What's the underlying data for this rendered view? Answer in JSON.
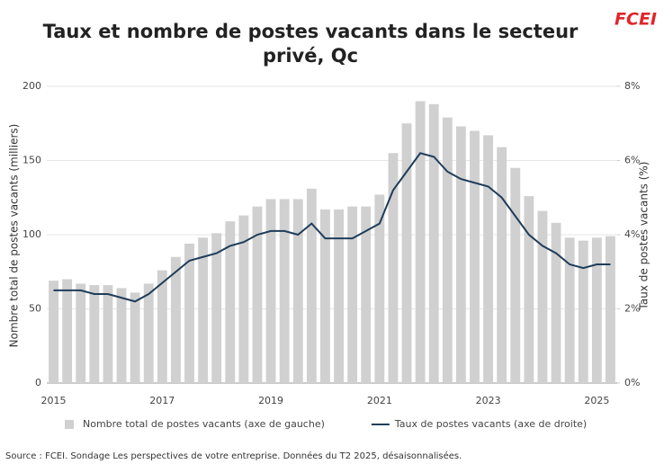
{
  "chart_data": {
    "type": "bar-line",
    "title": "Taux et nombre de postes vacants dans le secteur privé, Qc",
    "brand": "FCEI",
    "ylabel": "Nombre total de postes vacants (milliers)",
    "y2label": "Taux de postes vacants (%)",
    "source": "Source : FCEI. Sondage Les perspectives de votre entreprise. Données du T2 2025, désaisonnalisées.",
    "categories": [
      "2015",
      null,
      null,
      null,
      null,
      null,
      null,
      null,
      "2017",
      null,
      null,
      null,
      null,
      null,
      null,
      null,
      "2019",
      null,
      null,
      null,
      null,
      null,
      null,
      null,
      "2021",
      null,
      null,
      null,
      null,
      null,
      null,
      null,
      "2023",
      null,
      null,
      null,
      null,
      null,
      null,
      null,
      "2025",
      null
    ],
    "series": [
      {
        "name": "Nombre total de postes vacants (axe de gauche)",
        "color": "#d0d0d0",
        "type": "bar",
        "values": [
          69,
          70,
          67,
          66,
          66,
          64,
          61,
          67,
          76,
          85,
          94,
          98,
          101,
          109,
          113,
          119,
          124,
          124,
          124,
          131,
          117,
          117,
          119,
          119,
          127,
          155,
          175,
          190,
          188,
          179,
          173,
          170,
          167,
          159,
          145,
          126,
          116,
          108,
          98,
          96,
          98,
          99
        ]
      },
      {
        "name": "Taux de postes vacants (axe de droite)",
        "color": "#1f3d5a",
        "type": "line",
        "axis": "y2",
        "values": [
          2.5,
          2.5,
          2.5,
          2.4,
          2.4,
          2.3,
          2.2,
          2.4,
          2.7,
          3.0,
          3.3,
          3.4,
          3.5,
          3.7,
          3.8,
          4.0,
          4.1,
          4.1,
          4.0,
          4.3,
          3.9,
          3.9,
          3.9,
          4.1,
          4.3,
          5.2,
          5.7,
          6.2,
          6.1,
          5.7,
          5.5,
          5.4,
          5.3,
          5.0,
          4.5,
          4.0,
          3.7,
          3.5,
          3.2,
          3.1,
          3.2,
          3.2
        ]
      }
    ],
    "ylim": [
      0,
      200
    ],
    "yticks": [
      0,
      50,
      100,
      150,
      200
    ],
    "y2lim": [
      0,
      8
    ],
    "y2ticks": [
      {
        "value": 0,
        "label": "0%"
      },
      {
        "value": 2,
        "label": "2%"
      },
      {
        "value": 4,
        "label": "4%"
      },
      {
        "value": 6,
        "label": "6%"
      },
      {
        "value": 8,
        "label": "8%"
      }
    ],
    "grid": true,
    "legend": "bottom"
  }
}
